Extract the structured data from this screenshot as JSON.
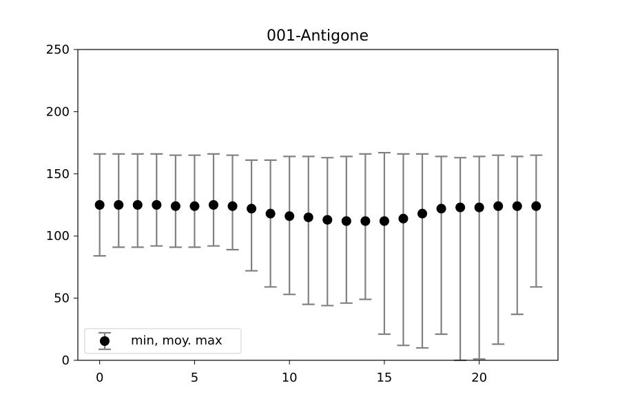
{
  "chart_data": {
    "type": "scatter",
    "title": "001-Antigone",
    "xlabel": "",
    "ylabel": "",
    "xlim": [
      -1.15,
      24.15
    ],
    "ylim": [
      0,
      250
    ],
    "x_ticks": [
      0,
      5,
      10,
      15,
      20
    ],
    "y_ticks": [
      0,
      50,
      100,
      150,
      200,
      250
    ],
    "grid": false,
    "legend": {
      "placement": "lower-left",
      "label": "min, moy. max"
    },
    "colors": {
      "point": "#000000",
      "errorbar": "#808080"
    },
    "series": [
      {
        "name": "min, moy. max",
        "x": [
          0,
          1,
          2,
          3,
          4,
          5,
          6,
          7,
          8,
          9,
          10,
          11,
          12,
          13,
          14,
          15,
          16,
          17,
          18,
          19,
          20,
          21,
          22,
          23
        ],
        "mean": [
          125,
          125,
          125,
          125,
          124,
          124,
          125,
          124,
          122,
          118,
          116,
          115,
          113,
          112,
          112,
          112,
          114,
          118,
          122,
          123,
          123,
          124,
          124,
          124
        ],
        "min": [
          84,
          91,
          91,
          92,
          91,
          91,
          92,
          89,
          72,
          59,
          53,
          45,
          44,
          46,
          49,
          21,
          12,
          10,
          21,
          0,
          1,
          13,
          37,
          59
        ],
        "max": [
          166,
          166,
          166,
          166,
          165,
          165,
          166,
          165,
          161,
          161,
          164,
          164,
          163,
          164,
          166,
          167,
          166,
          166,
          164,
          163,
          164,
          165,
          164,
          165
        ]
      }
    ]
  }
}
